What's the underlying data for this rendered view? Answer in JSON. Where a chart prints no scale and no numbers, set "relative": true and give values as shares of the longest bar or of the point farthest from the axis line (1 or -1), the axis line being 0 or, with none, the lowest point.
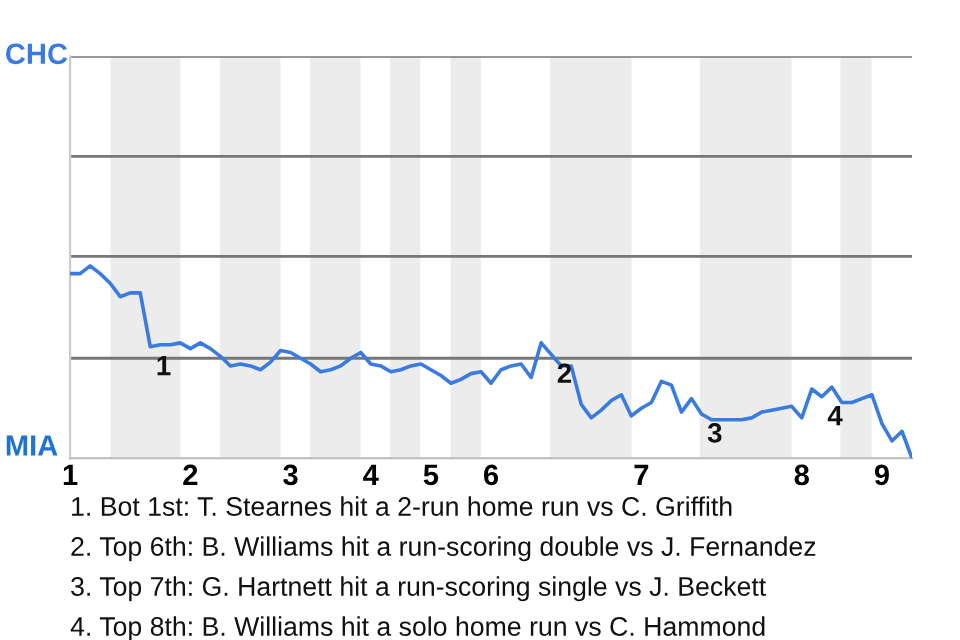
{
  "chart_data": {
    "type": "line",
    "relative": true,
    "color": "#3a7be0",
    "categories": [
      "1",
      null,
      null,
      null,
      null,
      null,
      null,
      null,
      null,
      null,
      null,
      null,
      "2",
      null,
      null,
      null,
      null,
      null,
      null,
      null,
      null,
      null,
      "3",
      null,
      null,
      null,
      null,
      null,
      null,
      null,
      "4",
      null,
      null,
      null,
      null,
      null,
      "5",
      null,
      null,
      null,
      null,
      null,
      "6",
      null,
      null,
      null,
      null,
      null,
      null,
      null,
      null,
      null,
      null,
      null,
      null,
      null,
      null,
      "7",
      null,
      null,
      null,
      null,
      null,
      null,
      null,
      null,
      null,
      null,
      null,
      null,
      null,
      null,
      null,
      "8",
      null,
      null,
      null,
      null,
      null,
      null,
      null,
      "9",
      null,
      null,
      null
    ],
    "values": [
      0.96,
      0.96,
      1.0,
      0.96,
      0.91,
      0.84,
      0.86,
      0.86,
      0.58,
      0.59,
      0.59,
      0.6,
      0.57,
      0.6,
      0.57,
      0.53,
      0.48,
      0.49,
      0.48,
      0.46,
      0.5,
      0.56,
      0.55,
      0.52,
      0.49,
      0.45,
      0.46,
      0.48,
      0.52,
      0.55,
      0.49,
      0.48,
      0.45,
      0.46,
      0.48,
      0.49,
      0.46,
      0.43,
      0.39,
      0.41,
      0.44,
      0.45,
      0.39,
      0.46,
      0.48,
      0.49,
      0.42,
      0.6,
      0.54,
      0.48,
      0.48,
      0.28,
      0.21,
      0.25,
      0.3,
      0.33,
      0.22,
      0.26,
      0.29,
      0.4,
      0.38,
      0.24,
      0.31,
      0.23,
      0.2,
      0.2,
      0.2,
      0.2,
      0.21,
      0.24,
      0.25,
      0.26,
      0.27,
      0.21,
      0.36,
      0.32,
      0.37,
      0.29,
      0.29,
      0.31,
      0.33,
      0.18,
      0.09,
      0.14,
      0.0
    ],
    "ref_lines": [
      {
        "axis": "y",
        "value": 0.52,
        "color": "#777777"
      },
      {
        "axis": "y",
        "value": 1.05,
        "color": "#777777"
      },
      {
        "axis": "y",
        "value": 1.57,
        "color": "#777777"
      },
      {
        "axis": "y",
        "value": 2.09,
        "color": "#777777"
      }
    ],
    "annotations": [
      "CHC",
      "MIA",
      {
        "text": "1",
        "y": 0.58
      },
      {
        "text": "2",
        "y": 0.54
      },
      {
        "text": "3",
        "y": 0.23
      },
      {
        "text": "4",
        "y": 0.32
      },
      "1. Bot 1st: T. Stearnes hit a 2-run home run vs C. Griffith",
      "2. Top 6th: B. Williams hit a run-scoring double vs J. Fernandez",
      "3. Top 7th: G. Hartnett hit a run-scoring single vs J. Beckett",
      "4. Top 8th: B. Williams hit a solo home run vs C. Hammond"
    ]
  }
}
